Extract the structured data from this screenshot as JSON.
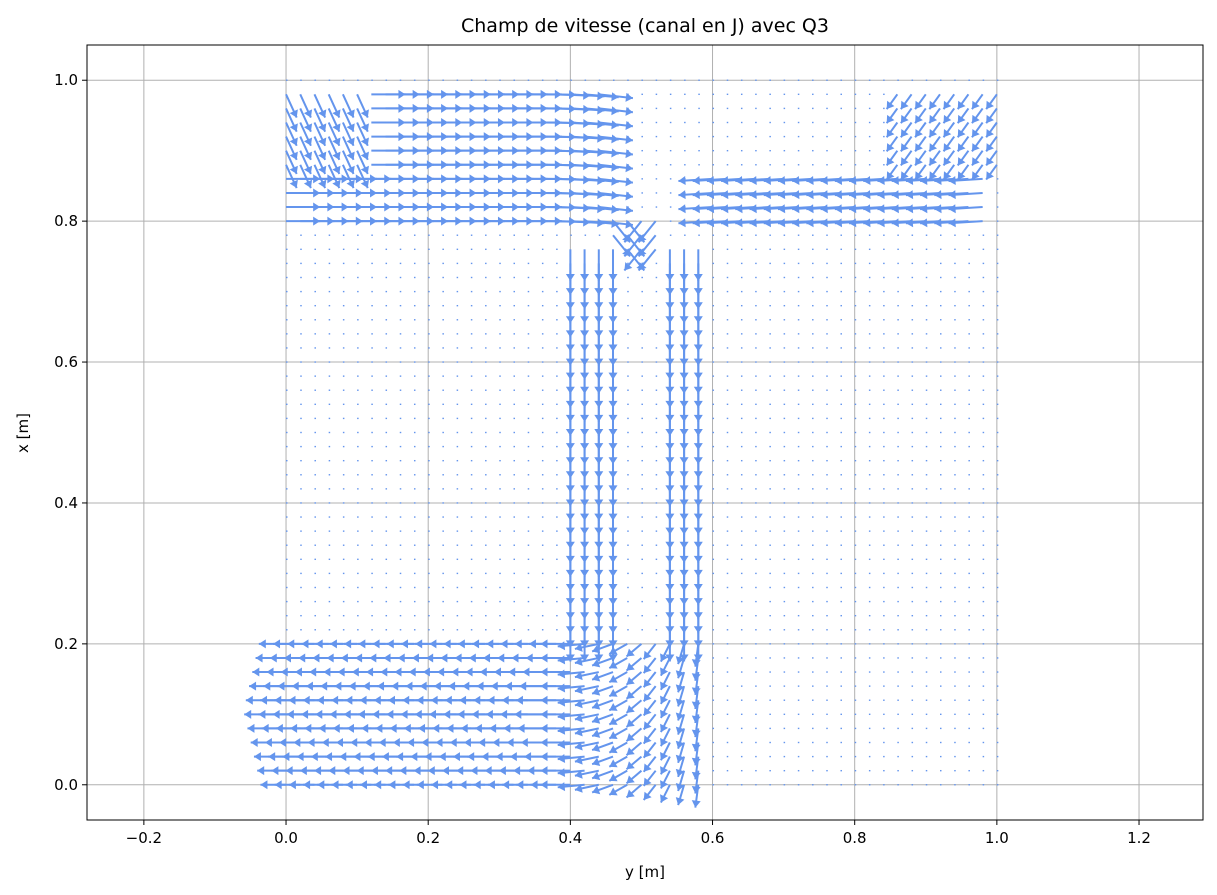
{
  "chart_data": {
    "type": "quiver",
    "title": "Champ de vitesse (canal en J) avec Q3",
    "xlabel": "y [m]",
    "ylabel": "x [m]",
    "xlim": [
      -0.28,
      1.29
    ],
    "ylim": [
      -0.05,
      1.05
    ],
    "xticks": [
      -0.2,
      0.0,
      0.2,
      0.4,
      0.6,
      0.8,
      1.0,
      1.2
    ],
    "yticks": [
      0.0,
      0.2,
      0.4,
      0.6,
      0.8,
      1.0
    ],
    "xtick_labels": [
      "−0.2",
      "0.0",
      "0.2",
      "0.4",
      "0.6",
      "0.8",
      "1.0",
      "1.2"
    ],
    "ytick_labels": [
      "0.0",
      "0.2",
      "0.4",
      "0.6",
      "0.8",
      "1.0"
    ],
    "grid": true,
    "arrow_color": "#6495ed",
    "field_domain": {
      "y": [
        0.0,
        1.0
      ],
      "x": [
        0.0,
        1.0
      ]
    },
    "channel_regions": [
      {
        "name": "bottom-inlet-horizontal",
        "y": [
          0.0,
          0.4
        ],
        "x": [
          0.0,
          0.21
        ],
        "flow": "leftward"
      },
      {
        "name": "left-vertical-leg",
        "y": [
          0.4,
          0.47
        ],
        "x": [
          0.21,
          0.78
        ],
        "flow": "downward"
      },
      {
        "name": "right-vertical-leg",
        "y": [
          0.54,
          0.6
        ],
        "x": [
          0.0,
          0.78
        ],
        "flow": "downward"
      },
      {
        "name": "top-left-branch",
        "y": [
          0.0,
          0.45
        ],
        "x": [
          0.79,
          0.99
        ],
        "flow": "rightward"
      },
      {
        "name": "top-right-branch",
        "y": [
          0.6,
          1.0
        ],
        "x": [
          0.79,
          0.87
        ],
        "flow": "leftward"
      }
    ]
  }
}
